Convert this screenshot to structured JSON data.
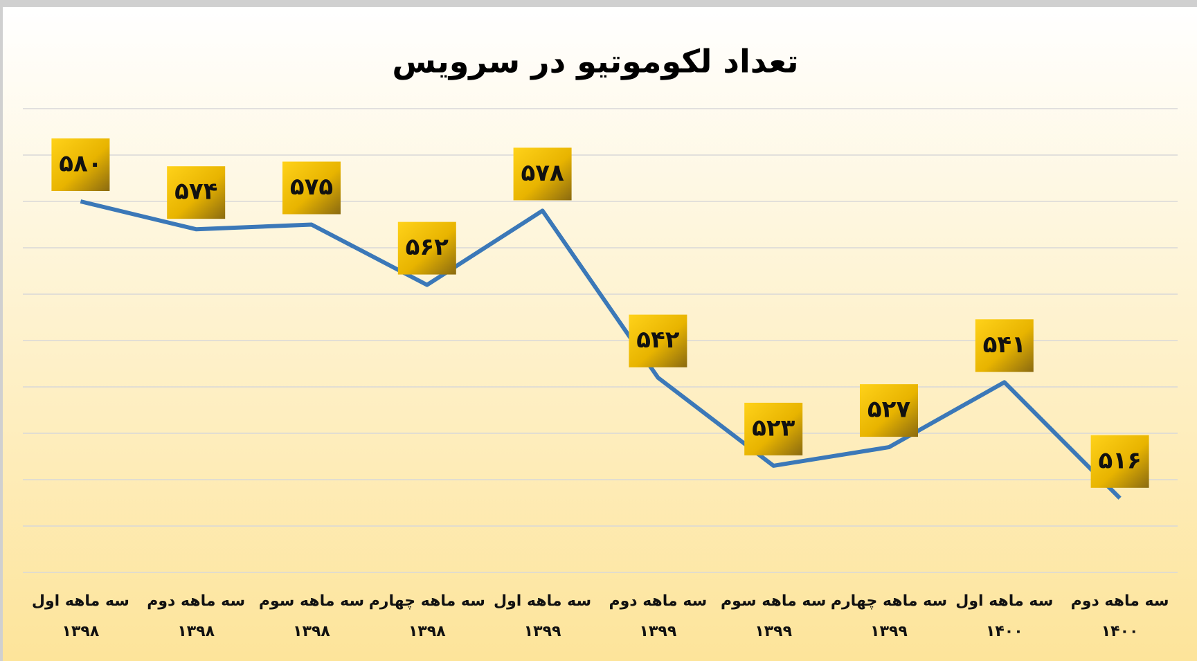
{
  "chart_data": {
    "type": "line",
    "title": "تعداد لکوموتیو در سرویس",
    "categories": [
      [
        "سه ماهه اول",
        "۱۳۹۸"
      ],
      [
        "سه ماهه دوم",
        "۱۳۹۸"
      ],
      [
        "سه ماهه سوم",
        "۱۳۹۸"
      ],
      [
        "سه ماهه چهارم",
        "۱۳۹۸"
      ],
      [
        "سه ماهه اول",
        "۱۳۹۹"
      ],
      [
        "سه ماهه دوم",
        "۱۳۹۹"
      ],
      [
        "سه ماهه سوم",
        "۱۳۹۹"
      ],
      [
        "سه ماهه چهارم",
        "۱۳۹۹"
      ],
      [
        "سه ماهه اول",
        "۱۴۰۰"
      ],
      [
        "سه ماهه دوم",
        "۱۴۰۰"
      ]
    ],
    "series": [
      {
        "name": "تعداد لکوموتیو",
        "color": "#3b78b8",
        "values": [
          580,
          574,
          575,
          562,
          578,
          542,
          523,
          527,
          541,
          516
        ],
        "value_labels": [
          "۵۸۰",
          "۵۷۴",
          "۵۷۵",
          "۵۶۲",
          "۵۷۸",
          "۵۴۲",
          "۵۲۳",
          "۵۲۷",
          "۵۴۱",
          "۵۱۶"
        ]
      }
    ],
    "ylim": [
      500,
      600
    ],
    "yticks": [
      500,
      510,
      520,
      530,
      540,
      550,
      560,
      570,
      580,
      590,
      600
    ],
    "grid": true
  }
}
